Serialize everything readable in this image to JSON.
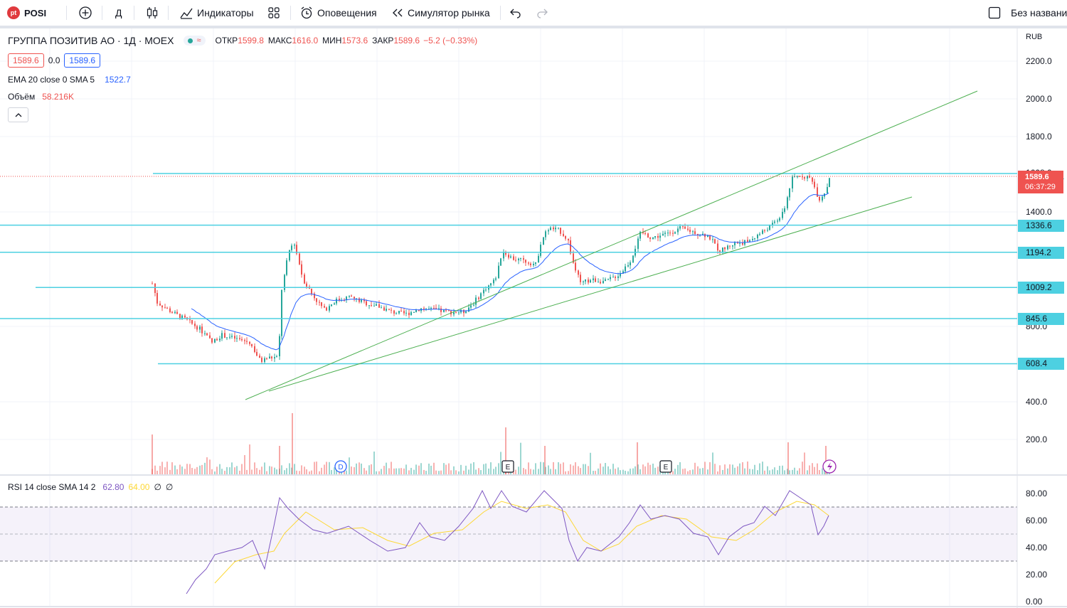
{
  "toolbar": {
    "symbol": "POSI",
    "logo_text": "pt",
    "add_icon": "plus-circle-icon",
    "interval": "Д",
    "chart_type_icon": "candles-icon",
    "indicators_label": "Индикаторы",
    "layouts_icon": "grid-icon",
    "alerts_label": "Оповещения",
    "replay_label": "Симулятор рынка",
    "undo_icon": "undo-icon",
    "redo_icon": "redo-icon",
    "layout_name": "Без названи"
  },
  "legend": {
    "title": "ГРУППА ПОЗИТИВ АО · 1Д · MOEX",
    "status_icon": "≈",
    "open_label": "ОТКР",
    "open": "1599.8",
    "high_label": "МАКС",
    "high": "1616.0",
    "low_label": "МИН",
    "low": "1573.6",
    "close_label": "ЗАКР",
    "close": "1589.6",
    "change": "−5.2 (−0.33%)",
    "bid": "1589.6",
    "spread": "0.0",
    "ask": "1589.6",
    "ema_label": "EMA 20 close 0 SMA 5",
    "ema_value": "1522.7",
    "volume_label": "Объём",
    "volume_value": "58.216K"
  },
  "rsi_legend": {
    "label": "RSI 14 close SMA 14 2",
    "value1": "62.80",
    "value2": "64.00",
    "value3": "∅",
    "value4": "∅"
  },
  "price_axis": {
    "currency": "RUB",
    "ticks": [
      "2200.0",
      "2000.0",
      "1800.0",
      "1400.0",
      "800.0",
      "400.0",
      "200.0"
    ],
    "levels": [
      {
        "price": 1608.0,
        "label": "1608.0"
      },
      {
        "price": 1336.6,
        "label": "1336.6"
      },
      {
        "price": 1194.2,
        "label": "1194.2"
      },
      {
        "price": 1009.2,
        "label": "1009.2"
      },
      {
        "price": 845.6,
        "label": "845.6"
      },
      {
        "price": 608.4,
        "label": "608.4"
      }
    ],
    "last_price": "1589.6",
    "countdown": "06:37:29"
  },
  "rsi_axis": {
    "ticks": [
      "80.00",
      "60.00",
      "40.00",
      "20.00",
      "0.00"
    ]
  },
  "markers": {
    "dividend": "D",
    "earnings": "E",
    "lightning": "lightning-icon"
  },
  "colors": {
    "up": "#26a69a",
    "down": "#ef5350",
    "ema": "#2962ff",
    "level": "#4dd0e1",
    "channel": "#4caf50",
    "rsi": "#7e57c2",
    "rsi_sma": "#fdd835"
  }
}
